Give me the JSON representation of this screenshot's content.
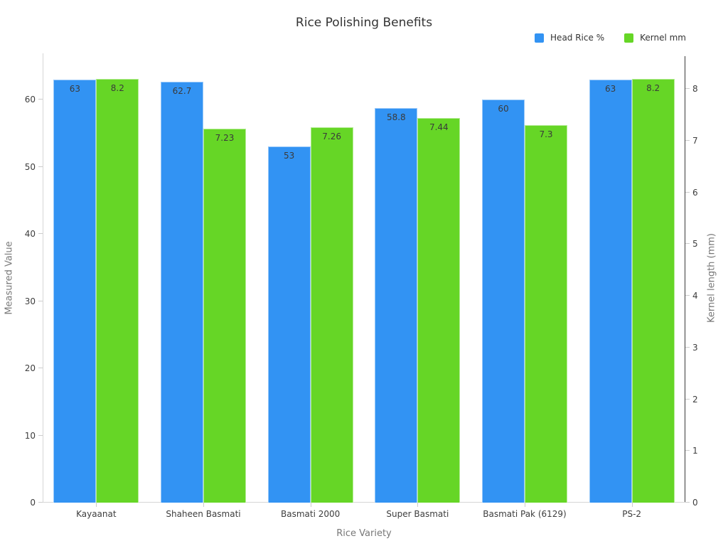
{
  "page": {
    "title": "Rice Polishing Benefits"
  },
  "chart_data": {
    "type": "bar",
    "title": "Rice Polishing Benefits",
    "categories": [
      "Kayaanat",
      "Shaheen Basmati",
      "Basmati 2000",
      "Super Basmati",
      "Basmati Pak (6129)",
      "PS-2"
    ],
    "series": [
      {
        "name": "Head Rice %",
        "axis": "left",
        "color": "#3293F3",
        "values": [
          63,
          62.7,
          53,
          58.8,
          60,
          63
        ]
      },
      {
        "name": "Kernel mm",
        "axis": "right",
        "color": "#66D626",
        "values": [
          8.2,
          7.23,
          7.26,
          7.44,
          7.3,
          8.2
        ]
      }
    ],
    "xlabel": "Rice Variety",
    "ylabel": "Measured Value",
    "y2label": "Kernel length (mm)",
    "ylim": [
      0,
      66.9
    ],
    "y2lim": [
      0,
      8.69
    ],
    "yticks": [
      0,
      10,
      20,
      30,
      40,
      50,
      60
    ],
    "y2ticks": [
      0,
      1,
      2,
      3,
      4,
      5,
      6,
      7,
      8
    ],
    "grid": false,
    "legend_position": "top-right",
    "background": "#ffffff",
    "value_labels": "inside-top"
  }
}
